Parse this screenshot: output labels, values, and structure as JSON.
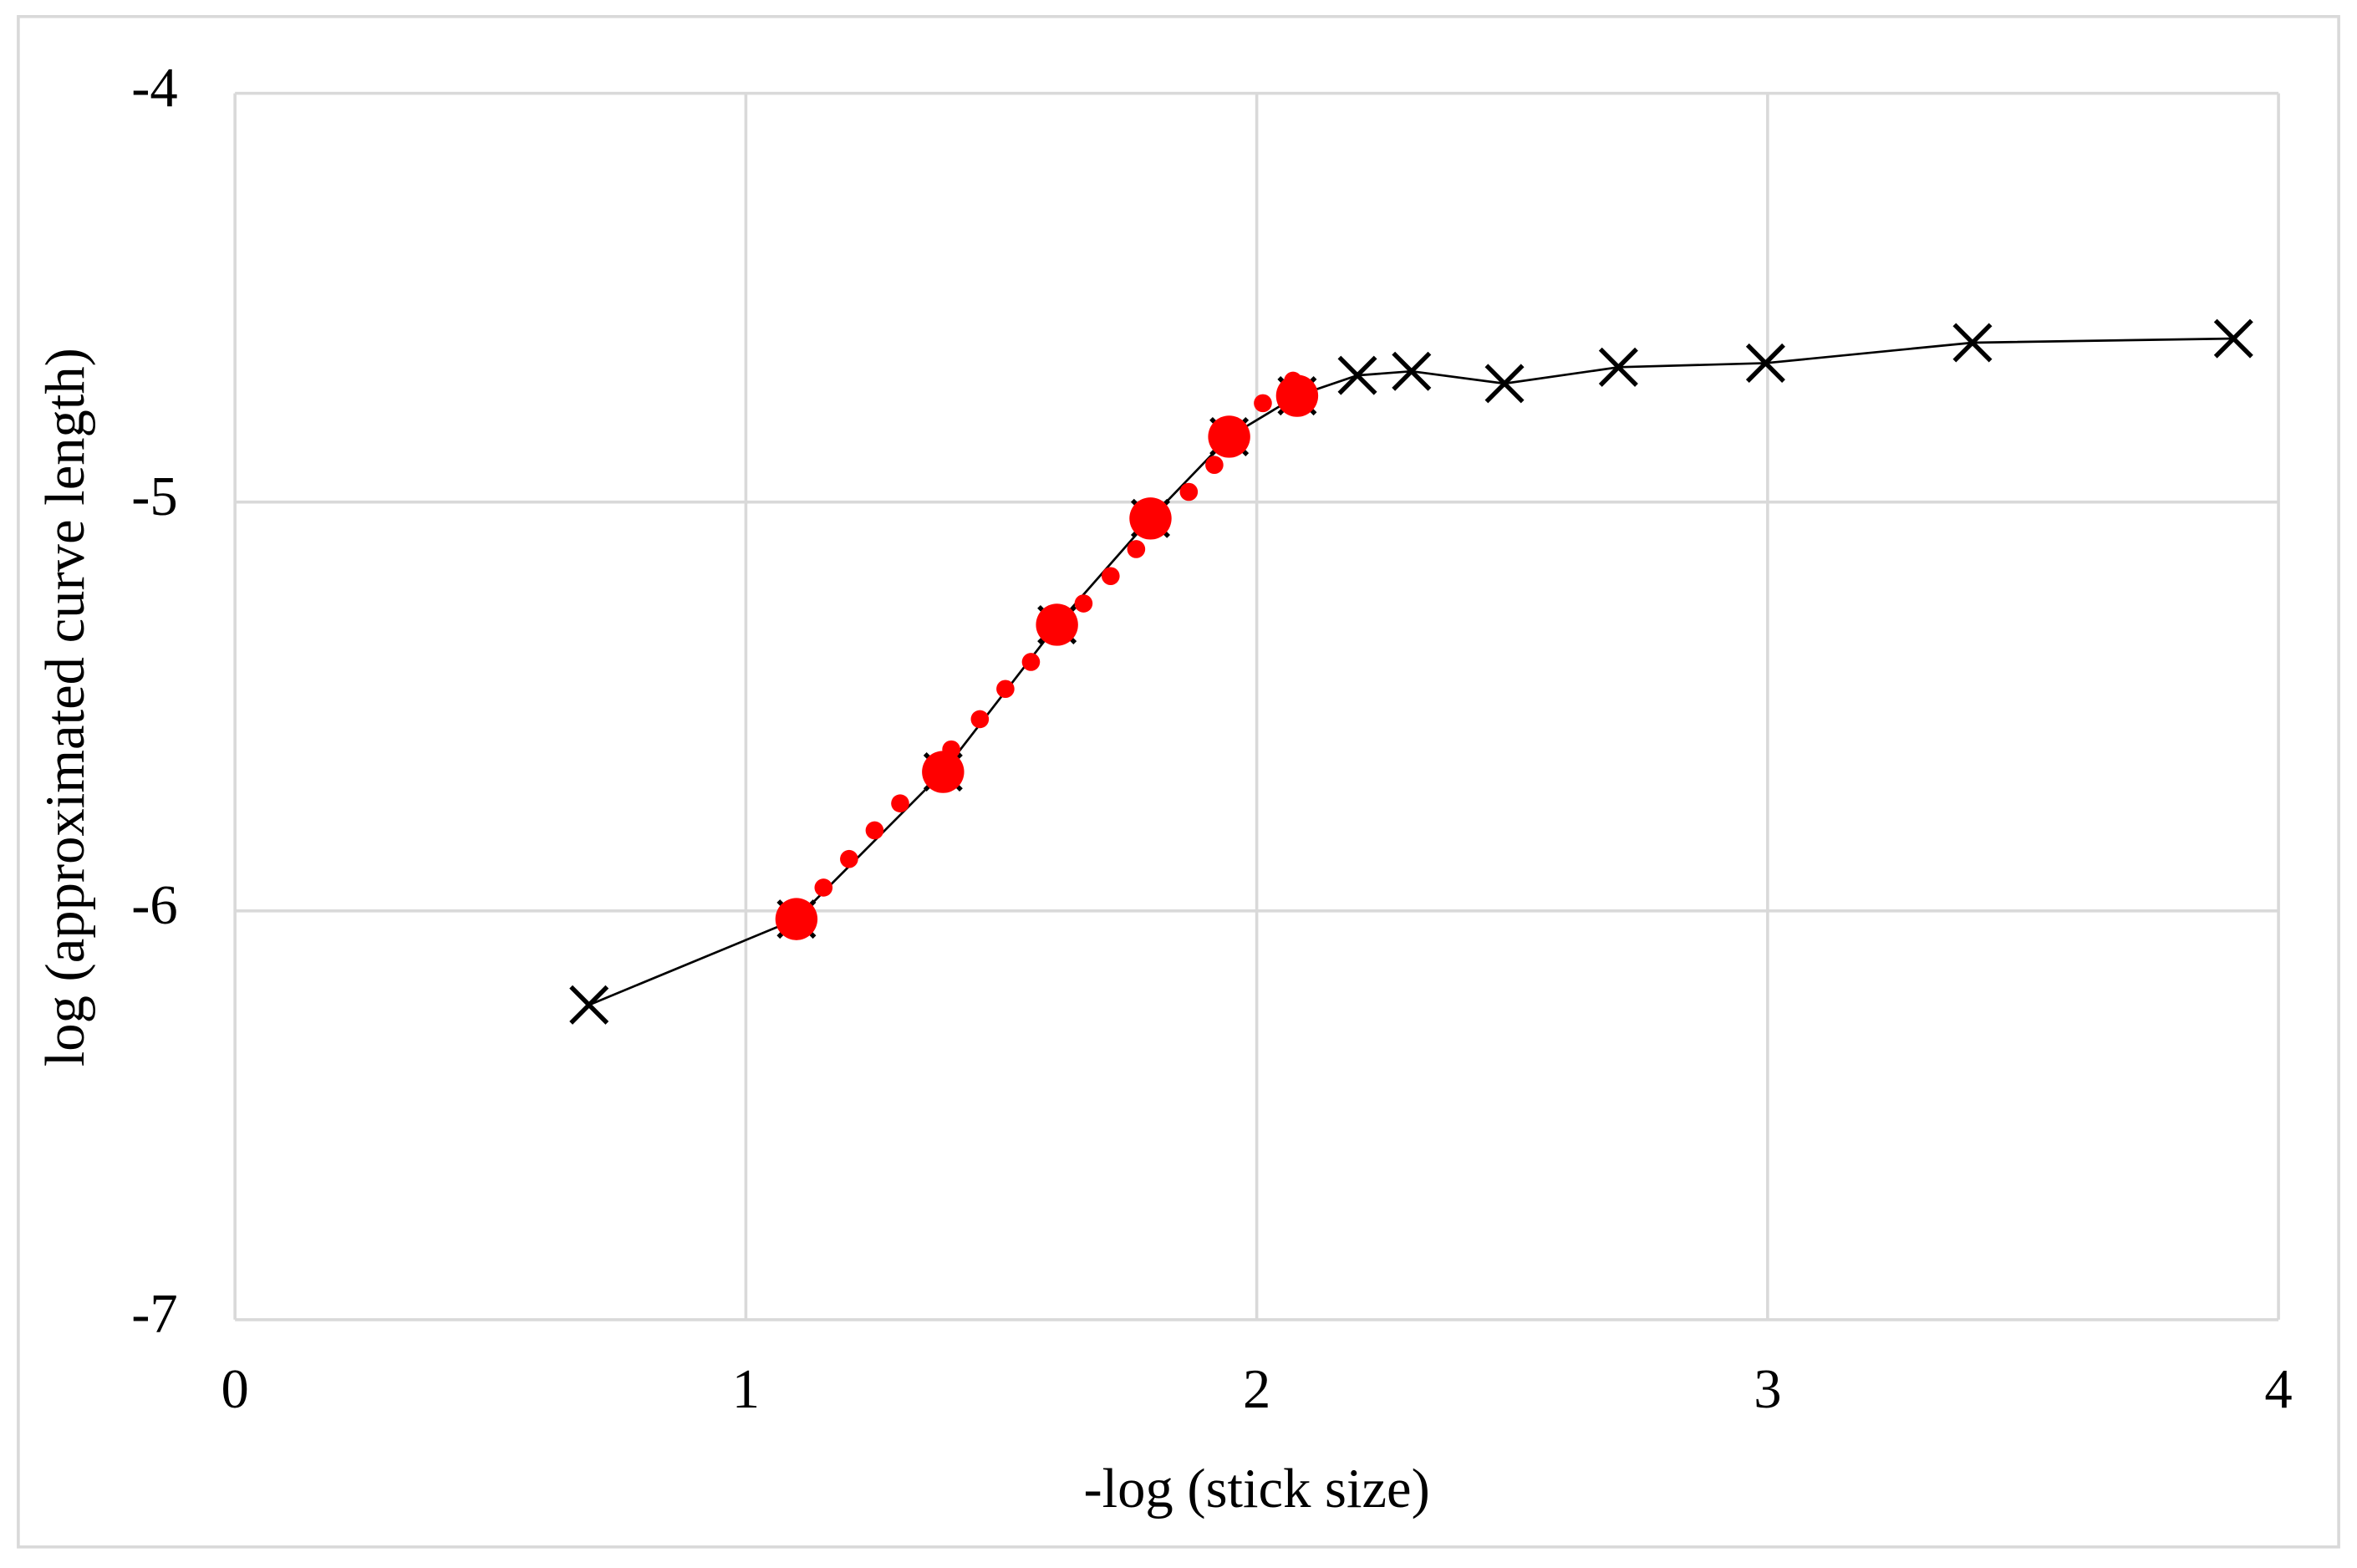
{
  "chart_data": {
    "type": "scatter",
    "x_label": "-log (stick size)",
    "y_label": "log (approximated curve length)",
    "xlim": [
      0,
      4
    ],
    "xticks": [
      0,
      1,
      2,
      3,
      4
    ],
    "ylim": [
      -7,
      -4
    ],
    "yticks": [
      -7,
      -6,
      -5,
      -4
    ],
    "grid": true,
    "series": [
      {
        "color": "#000000",
        "marker": "x",
        "line": true,
        "x": [
          0.693,
          1.099,
          1.386,
          1.609,
          1.792,
          1.946,
          2.079,
          2.197,
          2.303,
          2.485,
          2.708,
          2.996,
          3.401,
          3.912
        ],
        "values": [
          -6.23,
          -6.02,
          -5.66,
          -5.3,
          -5.04,
          -4.84,
          -4.74,
          -4.69,
          -4.68,
          -4.71,
          -4.67,
          -4.66,
          -4.61,
          -4.6
        ]
      },
      {
        "color": "#ff0000",
        "marker": "circle",
        "size": 14,
        "x": [
          1.099,
          1.386,
          1.609,
          1.792,
          1.946,
          2.079
        ],
        "values": [
          -6.02,
          -5.66,
          -5.3,
          -5.04,
          -4.84,
          -4.74
        ]
      },
      {
        "color": "#ff0000",
        "marker": "circle",
        "size": 6,
        "x": [
          1.152,
          1.202,
          1.252,
          1.302,
          1.402,
          1.458,
          1.508,
          1.558,
          1.661,
          1.714,
          1.764,
          1.867,
          1.917,
          2.012,
          2.071
        ],
        "values": [
          -5.943,
          -5.873,
          -5.803,
          -5.737,
          -5.605,
          -5.531,
          -5.457,
          -5.391,
          -5.248,
          -5.181,
          -5.115,
          -4.975,
          -4.909,
          -4.758,
          -4.703
        ]
      }
    ]
  }
}
